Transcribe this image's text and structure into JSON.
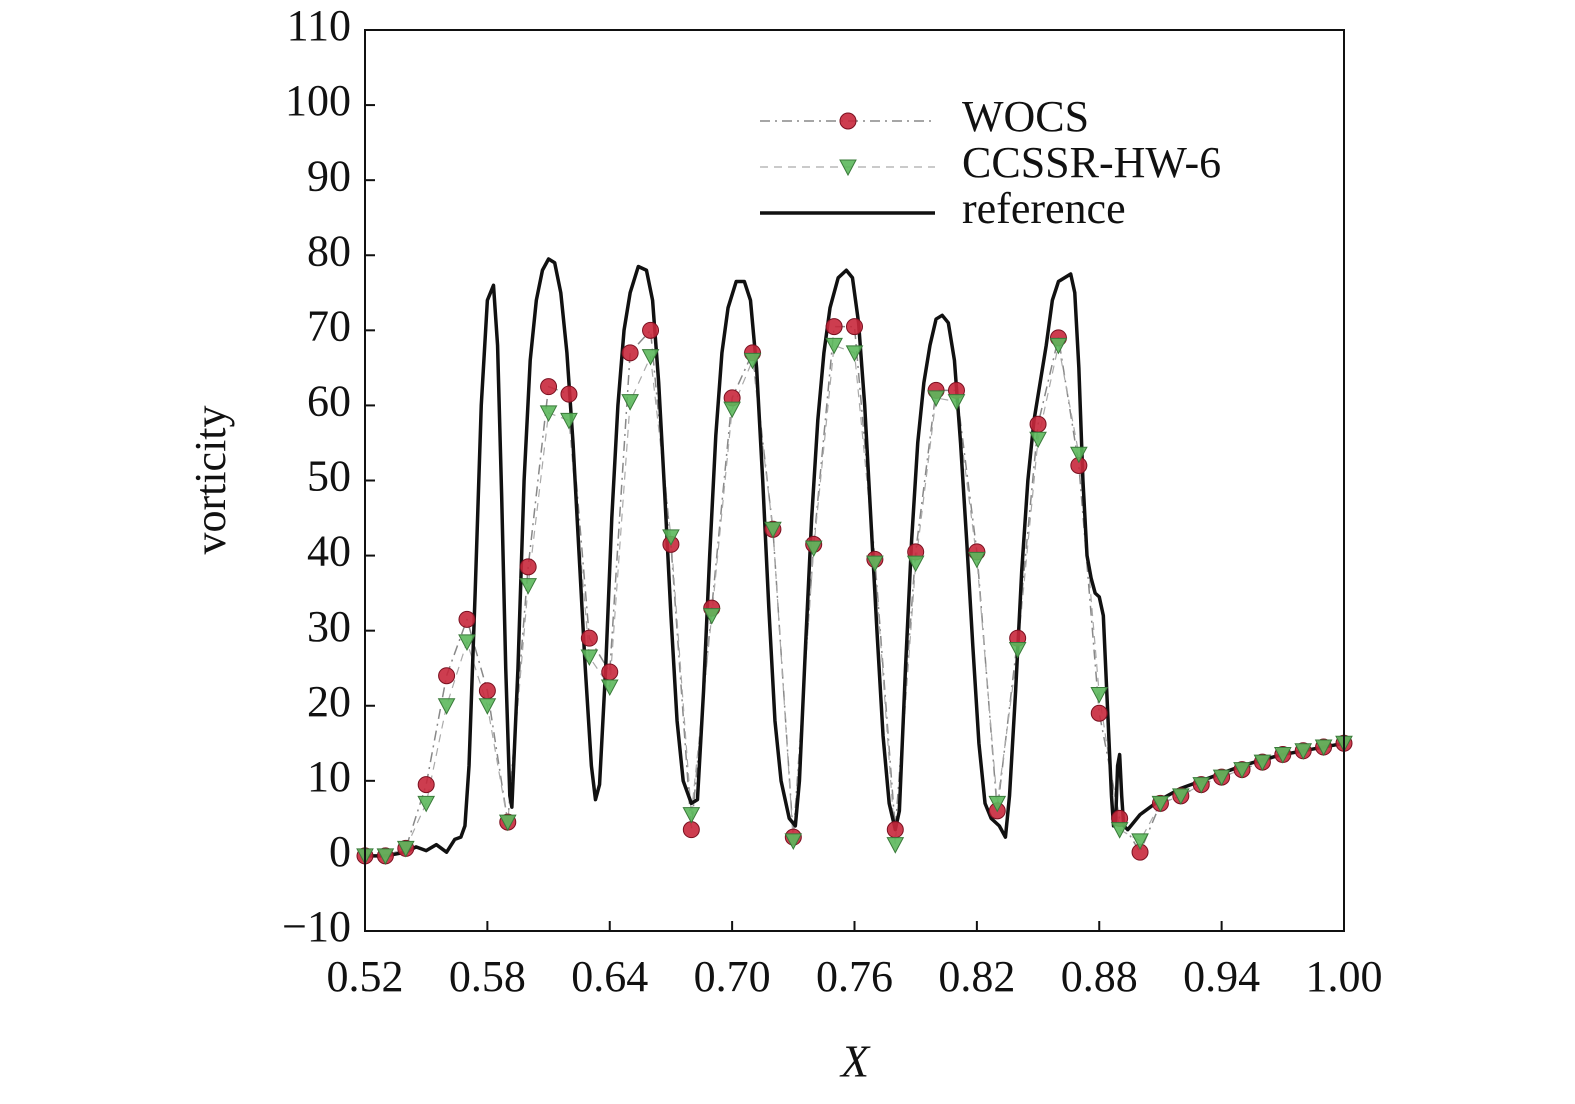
{
  "chart_data": {
    "type": "line",
    "xlabel": "X",
    "ylabel": "vorticity",
    "xlim": [
      0.52,
      1.0
    ],
    "ylim": [
      -10,
      110
    ],
    "xticks": [
      0.52,
      0.58,
      0.64,
      {
        "value": 0.7,
        "label": "0.70"
      },
      0.76,
      0.82,
      0.88,
      0.94,
      {
        "value": 1.0,
        "label": "1.00"
      }
    ],
    "yticks": [
      {
        "value": -10,
        "label": "−10"
      },
      0,
      10,
      20,
      30,
      40,
      50,
      60,
      70,
      80,
      90,
      100,
      110
    ],
    "legend": "upper right",
    "series": [
      {
        "name": "WOCS",
        "color": "#c8283c",
        "line_color": "#888888",
        "dash": "dash-dot",
        "marker": "circle",
        "x": [
          0.52,
          0.53,
          0.54,
          0.55,
          0.56,
          0.57,
          0.58,
          0.59,
          0.6,
          0.61,
          0.62,
          0.63,
          0.64,
          0.65,
          0.66,
          0.67,
          0.68,
          0.69,
          0.7,
          0.71,
          0.72,
          0.73,
          0.74,
          0.75,
          0.76,
          0.77,
          0.78,
          0.79,
          0.8,
          0.81,
          0.82,
          0.83,
          0.84,
          0.85,
          0.86,
          0.87,
          0.88,
          0.89,
          0.9,
          0.91,
          0.92,
          0.93,
          0.94,
          0.95,
          0.96,
          0.97,
          0.98,
          0.99,
          1.0
        ],
        "values": [
          0,
          0,
          1,
          9.5,
          24,
          31.5,
          22,
          4.5,
          38.5,
          62.5,
          61.5,
          29,
          24.5,
          67,
          70,
          41.5,
          3.5,
          33,
          61,
          67,
          43.5,
          2.5,
          41.5,
          70.5,
          70.5,
          39.5,
          3.5,
          40.5,
          62,
          62,
          40.5,
          6,
          29,
          57.5,
          69,
          52,
          19,
          5,
          0.5,
          7,
          8,
          9.5,
          10.5,
          11.5,
          12.5,
          13.5,
          14,
          14.5,
          15
        ]
      },
      {
        "name": "CCSSR-HW-6",
        "color": "#5cb85c",
        "line_color": "#aaaaaa",
        "dash": "dash",
        "marker": "triangle",
        "x": [
          0.52,
          0.53,
          0.54,
          0.55,
          0.56,
          0.57,
          0.58,
          0.59,
          0.6,
          0.61,
          0.62,
          0.63,
          0.64,
          0.65,
          0.66,
          0.67,
          0.68,
          0.69,
          0.7,
          0.71,
          0.72,
          0.73,
          0.74,
          0.75,
          0.76,
          0.77,
          0.78,
          0.79,
          0.8,
          0.81,
          0.82,
          0.83,
          0.84,
          0.85,
          0.86,
          0.87,
          0.88,
          0.89,
          0.9,
          0.91,
          0.92,
          0.93,
          0.94,
          0.95,
          0.96,
          0.97,
          0.98,
          0.99,
          1.0
        ],
        "values": [
          0,
          0,
          1,
          7,
          20,
          28.5,
          20,
          4.5,
          36,
          59,
          58,
          26.5,
          22.5,
          60.5,
          66.5,
          42.5,
          5.5,
          32,
          59.5,
          66,
          43.5,
          2,
          41,
          68,
          67,
          39,
          1.5,
          39,
          61,
          60.5,
          39.5,
          7,
          27.5,
          55.5,
          68,
          53.5,
          21.5,
          3.5,
          2,
          7,
          8,
          9.5,
          10.5,
          11.5,
          12.5,
          13.5,
          14,
          14.5,
          15
        ]
      },
      {
        "name": "reference",
        "color": "#111111",
        "line_color": "#111111",
        "dash": "solid",
        "marker": "none",
        "x": [
          0.52,
          0.53,
          0.54,
          0.545,
          0.55,
          0.555,
          0.56,
          0.564,
          0.567,
          0.569,
          0.571,
          0.574,
          0.577,
          0.58,
          0.583,
          0.585,
          0.587,
          0.589,
          0.591,
          0.592,
          0.595,
          0.598,
          0.601,
          0.604,
          0.607,
          0.61,
          0.613,
          0.616,
          0.619,
          0.622,
          0.625,
          0.628,
          0.631,
          0.633,
          0.635,
          0.638,
          0.641,
          0.644,
          0.647,
          0.65,
          0.654,
          0.658,
          0.661,
          0.664,
          0.667,
          0.67,
          0.673,
          0.676,
          0.68,
          0.683,
          0.686,
          0.689,
          0.692,
          0.695,
          0.698,
          0.702,
          0.706,
          0.709,
          0.712,
          0.715,
          0.718,
          0.721,
          0.724,
          0.728,
          0.731,
          0.733,
          0.736,
          0.739,
          0.742,
          0.745,
          0.748,
          0.752,
          0.756,
          0.759,
          0.762,
          0.765,
          0.768,
          0.771,
          0.774,
          0.777,
          0.78,
          0.782,
          0.785,
          0.788,
          0.791,
          0.794,
          0.797,
          0.8,
          0.803,
          0.806,
          0.809,
          0.812,
          0.815,
          0.818,
          0.821,
          0.824,
          0.827,
          0.831,
          0.834,
          0.836,
          0.839,
          0.842,
          0.845,
          0.848,
          0.851,
          0.854,
          0.857,
          0.86,
          0.863,
          0.866,
          0.868,
          0.87,
          0.872,
          0.874,
          0.876,
          0.878,
          0.88,
          0.882,
          0.884,
          0.886,
          0.887,
          0.888,
          0.889,
          0.89,
          0.891,
          0.892,
          0.894,
          0.897,
          0.9,
          0.91,
          0.92,
          0.93,
          0.94,
          0.95,
          0.96,
          0.97,
          0.98,
          0.99,
          1.0
        ],
        "values": [
          0,
          0,
          0.5,
          1.2,
          0.7,
          1.5,
          0.5,
          2.2,
          2.5,
          4,
          12,
          35,
          60,
          74,
          76,
          68,
          48,
          25,
          8,
          6.5,
          25,
          50,
          66,
          74,
          78,
          79.5,
          79,
          75,
          67,
          55,
          40,
          25,
          12,
          7.5,
          9.5,
          25,
          45,
          60,
          70,
          75,
          78.5,
          78,
          74,
          63,
          48,
          32,
          18,
          10,
          7,
          7.5,
          22,
          40,
          56,
          67,
          73,
          76.5,
          76.5,
          74,
          65,
          50,
          33,
          18,
          10,
          5,
          4,
          10,
          28,
          45,
          58,
          67,
          73,
          77,
          78,
          77,
          71,
          60,
          45,
          30,
          16,
          7,
          3.5,
          6,
          25,
          42,
          55,
          63,
          68,
          71.5,
          72,
          71,
          66,
          55,
          42,
          28,
          15,
          7,
          5,
          4,
          2.5,
          8,
          22,
          38,
          50,
          58,
          63,
          68,
          74,
          76.5,
          77,
          77.5,
          75,
          65,
          50,
          40,
          37,
          35,
          34.5,
          32,
          20,
          8,
          4,
          4.5,
          12,
          13.5,
          8,
          4,
          3.5,
          4.5,
          5.5,
          7.5,
          9,
          10,
          11,
          12,
          12.8,
          13.5,
          14,
          14.5,
          15
        ]
      }
    ]
  }
}
